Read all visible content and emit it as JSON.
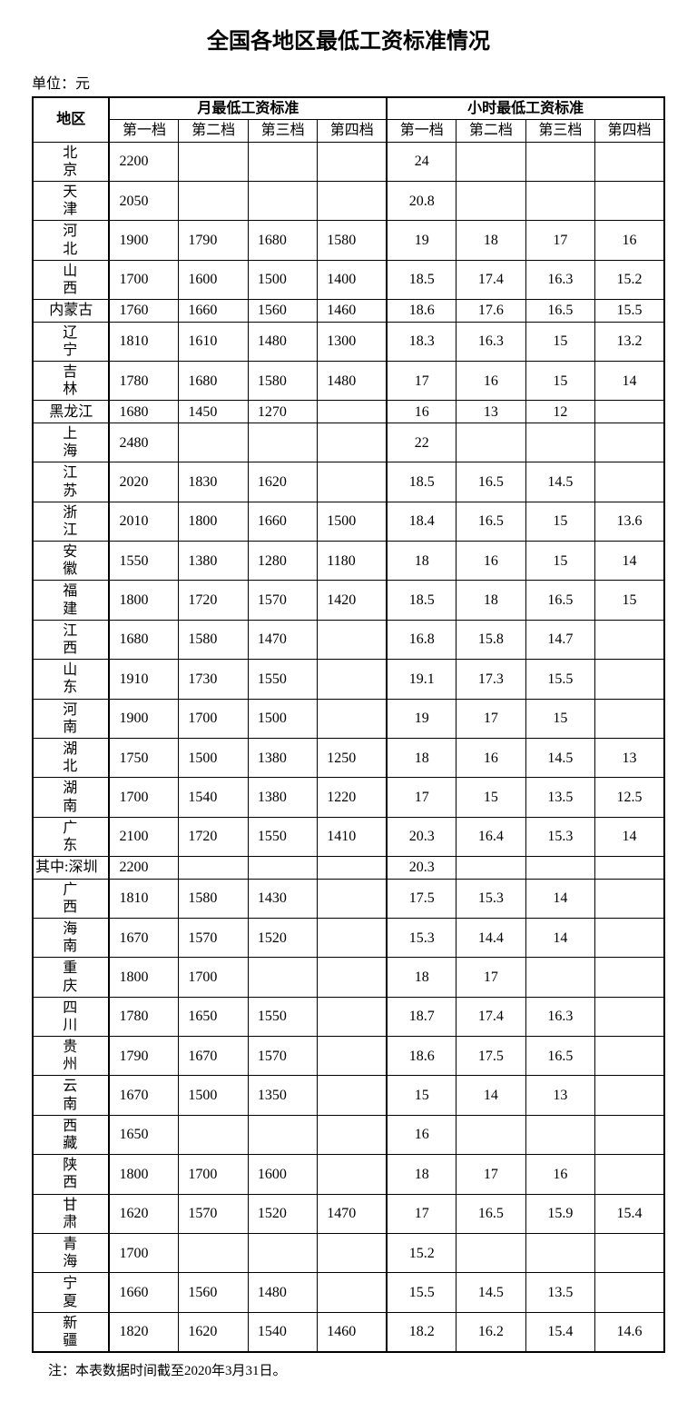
{
  "title": "全国各地区最低工资标准情况",
  "unit": "单位：元",
  "headers": {
    "region": "地区",
    "monthly": "月最低工资标准",
    "hourly": "小时最低工资标准",
    "tier1": "第一档",
    "tier2": "第二档",
    "tier3": "第三档",
    "tier4": "第四档"
  },
  "rows": [
    {
      "region": "北京",
      "chars": 2,
      "m1": "2200",
      "m2": "",
      "m3": "",
      "m4": "",
      "h1": "24",
      "h2": "",
      "h3": "",
      "h4": ""
    },
    {
      "region": "天津",
      "chars": 2,
      "m1": "2050",
      "m2": "",
      "m3": "",
      "m4": "",
      "h1": "20.8",
      "h2": "",
      "h3": "",
      "h4": ""
    },
    {
      "region": "河北",
      "chars": 2,
      "m1": "1900",
      "m2": "1790",
      "m3": "1680",
      "m4": "1580",
      "h1": "19",
      "h2": "18",
      "h3": "17",
      "h4": "16"
    },
    {
      "region": "山西",
      "chars": 2,
      "m1": "1700",
      "m2": "1600",
      "m3": "1500",
      "m4": "1400",
      "h1": "18.5",
      "h2": "17.4",
      "h3": "16.3",
      "h4": "15.2"
    },
    {
      "region": "内蒙古",
      "chars": 3,
      "m1": "1760",
      "m2": "1660",
      "m3": "1560",
      "m4": "1460",
      "h1": "18.6",
      "h2": "17.6",
      "h3": "16.5",
      "h4": "15.5"
    },
    {
      "region": "辽宁",
      "chars": 2,
      "m1": "1810",
      "m2": "1610",
      "m3": "1480",
      "m4": "1300",
      "h1": "18.3",
      "h2": "16.3",
      "h3": "15",
      "h4": "13.2"
    },
    {
      "region": "吉林",
      "chars": 2,
      "m1": "1780",
      "m2": "1680",
      "m3": "1580",
      "m4": "1480",
      "h1": "17",
      "h2": "16",
      "h3": "15",
      "h4": "14"
    },
    {
      "region": "黑龙江",
      "chars": 3,
      "m1": "1680",
      "m2": "1450",
      "m3": "1270",
      "m4": "",
      "h1": "16",
      "h2": "13",
      "h3": "12",
      "h4": ""
    },
    {
      "region": "上海",
      "chars": 2,
      "m1": "2480",
      "m2": "",
      "m3": "",
      "m4": "",
      "h1": "22",
      "h2": "",
      "h3": "",
      "h4": ""
    },
    {
      "region": "江苏",
      "chars": 2,
      "m1": "2020",
      "m2": "1830",
      "m3": "1620",
      "m4": "",
      "h1": "18.5",
      "h2": "16.5",
      "h3": "14.5",
      "h4": ""
    },
    {
      "region": "浙江",
      "chars": 2,
      "m1": "2010",
      "m2": "1800",
      "m3": "1660",
      "m4": "1500",
      "h1": "18.4",
      "h2": "16.5",
      "h3": "15",
      "h4": "13.6"
    },
    {
      "region": "安徽",
      "chars": 2,
      "m1": "1550",
      "m2": "1380",
      "m3": "1280",
      "m4": "1180",
      "h1": "18",
      "h2": "16",
      "h3": "15",
      "h4": "14"
    },
    {
      "region": "福建",
      "chars": 2,
      "m1": "1800",
      "m2": "1720",
      "m3": "1570",
      "m4": "1420",
      "h1": "18.5",
      "h2": "18",
      "h3": "16.5",
      "h4": "15"
    },
    {
      "region": "江西",
      "chars": 2,
      "m1": "1680",
      "m2": "1580",
      "m3": "1470",
      "m4": "",
      "h1": "16.8",
      "h2": "15.8",
      "h3": "14.7",
      "h4": ""
    },
    {
      "region": "山东",
      "chars": 2,
      "m1": "1910",
      "m2": "1730",
      "m3": "1550",
      "m4": "",
      "h1": "19.1",
      "h2": "17.3",
      "h3": "15.5",
      "h4": ""
    },
    {
      "region": "河南",
      "chars": 2,
      "m1": "1900",
      "m2": "1700",
      "m3": "1500",
      "m4": "",
      "h1": "19",
      "h2": "17",
      "h3": "15",
      "h4": ""
    },
    {
      "region": "湖北",
      "chars": 2,
      "m1": "1750",
      "m2": "1500",
      "m3": "1380",
      "m4": "1250",
      "h1": "18",
      "h2": "16",
      "h3": "14.5",
      "h4": "13"
    },
    {
      "region": "湖南",
      "chars": 2,
      "m1": "1700",
      "m2": "1540",
      "m3": "1380",
      "m4": "1220",
      "h1": "17",
      "h2": "15",
      "h3": "13.5",
      "h4": "12.5"
    },
    {
      "region": "广东",
      "chars": 2,
      "m1": "2100",
      "m2": "1720",
      "m3": "1550",
      "m4": "1410",
      "h1": "20.3",
      "h2": "16.4",
      "h3": "15.3",
      "h4": "14"
    },
    {
      "region": "其中:深圳",
      "chars": 5,
      "m1": "2200",
      "m2": "",
      "m3": "",
      "m4": "",
      "h1": "20.3",
      "h2": "",
      "h3": "",
      "h4": ""
    },
    {
      "region": "广西",
      "chars": 2,
      "m1": "1810",
      "m2": "1580",
      "m3": "1430",
      "m4": "",
      "h1": "17.5",
      "h2": "15.3",
      "h3": "14",
      "h4": ""
    },
    {
      "region": "海南",
      "chars": 2,
      "m1": "1670",
      "m2": "1570",
      "m3": "1520",
      "m4": "",
      "h1": "15.3",
      "h2": "14.4",
      "h3": "14",
      "h4": ""
    },
    {
      "region": "重庆",
      "chars": 2,
      "m1": "1800",
      "m2": "1700",
      "m3": "",
      "m4": "",
      "h1": "18",
      "h2": "17",
      "h3": "",
      "h4": ""
    },
    {
      "region": "四川",
      "chars": 2,
      "m1": "1780",
      "m2": "1650",
      "m3": "1550",
      "m4": "",
      "h1": "18.7",
      "h2": "17.4",
      "h3": "16.3",
      "h4": ""
    },
    {
      "region": "贵州",
      "chars": 2,
      "m1": "1790",
      "m2": "1670",
      "m3": "1570",
      "m4": "",
      "h1": "18.6",
      "h2": "17.5",
      "h3": "16.5",
      "h4": ""
    },
    {
      "region": "云南",
      "chars": 2,
      "m1": "1670",
      "m2": "1500",
      "m3": "1350",
      "m4": "",
      "h1": "15",
      "h2": "14",
      "h3": "13",
      "h4": ""
    },
    {
      "region": "西藏",
      "chars": 2,
      "m1": "1650",
      "m2": "",
      "m3": "",
      "m4": "",
      "h1": "16",
      "h2": "",
      "h3": "",
      "h4": ""
    },
    {
      "region": "陕西",
      "chars": 2,
      "m1": "1800",
      "m2": "1700",
      "m3": "1600",
      "m4": "",
      "h1": "18",
      "h2": "17",
      "h3": "16",
      "h4": ""
    },
    {
      "region": "甘肃",
      "chars": 2,
      "m1": "1620",
      "m2": "1570",
      "m3": "1520",
      "m4": "1470",
      "h1": "17",
      "h2": "16.5",
      "h3": "15.9",
      "h4": "15.4"
    },
    {
      "region": "青海",
      "chars": 2,
      "m1": "1700",
      "m2": "",
      "m3": "",
      "m4": "",
      "h1": "15.2",
      "h2": "",
      "h3": "",
      "h4": ""
    },
    {
      "region": "宁夏",
      "chars": 2,
      "m1": "1660",
      "m2": "1560",
      "m3": "1480",
      "m4": "",
      "h1": "15.5",
      "h2": "14.5",
      "h3": "13.5",
      "h4": ""
    },
    {
      "region": "新疆",
      "chars": 2,
      "m1": "1820",
      "m2": "1620",
      "m3": "1540",
      "m4": "1460",
      "h1": "18.2",
      "h2": "16.2",
      "h3": "15.4",
      "h4": "14.6"
    }
  ],
  "footer": "注：本表数据时间截至2020年3月31日。",
  "style": {
    "background_color": "#ffffff",
    "text_color": "#000000",
    "border_color": "#000000",
    "title_fontsize": 24,
    "body_fontsize": 16,
    "footer_fontsize": 15,
    "outer_border_width": 2.5,
    "inner_border_width": 1
  }
}
